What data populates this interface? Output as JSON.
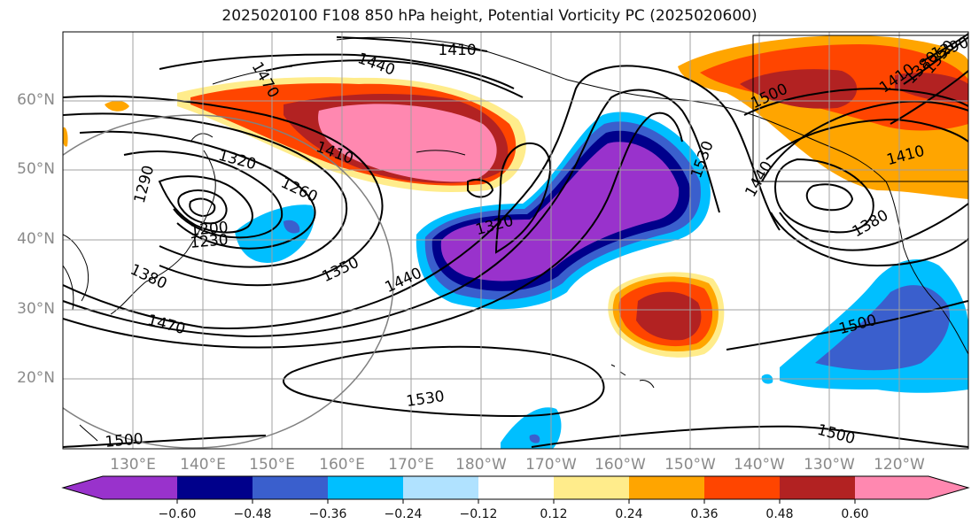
{
  "title": "2025020100 F108 850 hPa height, Potential Vorticity PC (2025020600)",
  "axes": {
    "lat_labels": [
      "60°N",
      "50°N",
      "40°N",
      "30°N",
      "20°N"
    ],
    "lon_labels": [
      "130°E",
      "140°E",
      "150°E",
      "160°E",
      "170°E",
      "180°W",
      "170°W",
      "160°W",
      "150°W",
      "140°W",
      "130°W",
      "120°W"
    ],
    "lat_range": [
      10,
      70
    ],
    "lon_range": [
      120,
      250
    ],
    "grid": true
  },
  "contour_labels": [
    "1410",
    "1440",
    "1470",
    "1410",
    "1320",
    "1260",
    "1290",
    "1200",
    "1230",
    "1350",
    "1380",
    "1440",
    "1320",
    "1470",
    "1530",
    "1500",
    "1530",
    "1440",
    "1500",
    "1410",
    "1380",
    "1500",
    "1500",
    "1410",
    "1380",
    "1350",
    "1290"
  ],
  "colorbar": {
    "ticks": [
      "−0.60",
      "−0.48",
      "−0.36",
      "−0.24",
      "−0.12",
      "0.12",
      "0.24",
      "0.36",
      "0.48",
      "0.60"
    ],
    "colors": [
      "#9932cc",
      "#00008b",
      "#3a5fcd",
      "#00bfff",
      "#b0e2ff",
      "#ffffff",
      "#ffec8b",
      "#ffa500",
      "#ff4500",
      "#b22222",
      "#ff88b0"
    ]
  }
}
